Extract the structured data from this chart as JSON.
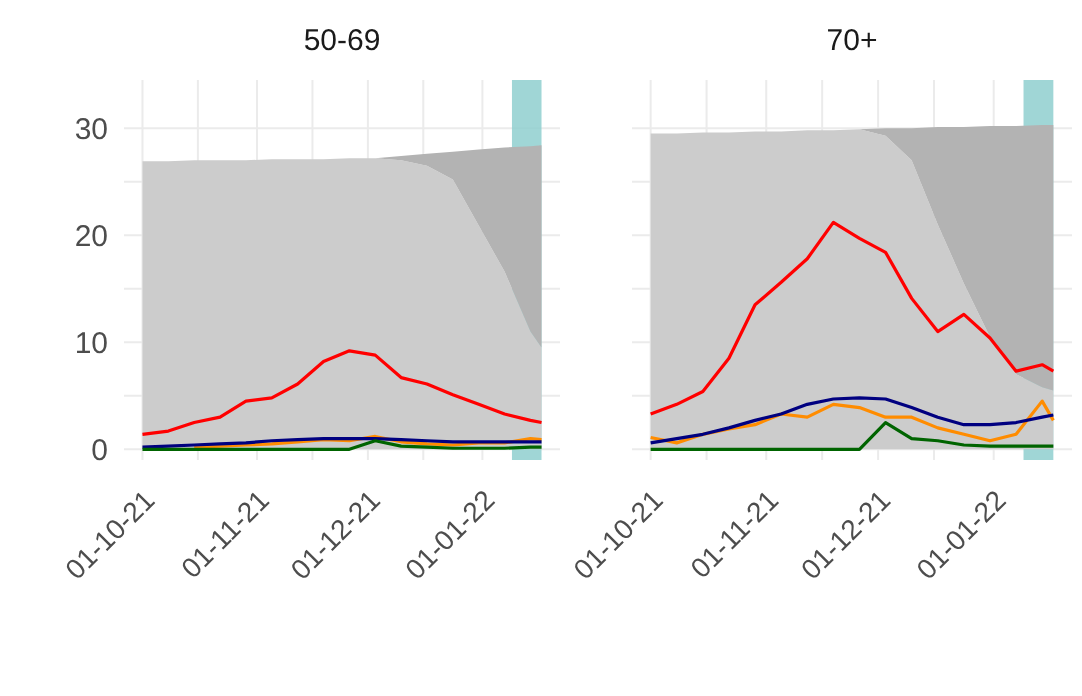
{
  "chart_data": [
    {
      "type": "line",
      "title": "50-69",
      "stacked": true,
      "grid": true,
      "legend": false,
      "x": [
        "2021-10-01",
        "2021-10-08",
        "2021-10-15",
        "2021-10-22",
        "2021-10-29",
        "2021-11-05",
        "2021-11-12",
        "2021-11-19",
        "2021-11-26",
        "2021-12-03",
        "2021-12-10",
        "2021-12-17",
        "2021-12-24",
        "2021-12-31",
        "2022-01-07",
        "2022-01-14",
        "2022-01-17"
      ],
      "series": [
        {
          "type": "area",
          "color": "#cccccc",
          "values": [
            26.9,
            26.9,
            27.0,
            27.0,
            27.0,
            27.1,
            27.1,
            27.1,
            27.2,
            27.2,
            27.0,
            26.5,
            25.2,
            20.9,
            16.6,
            11.0,
            9.5
          ]
        },
        {
          "type": "area",
          "color": "#b3b3b3",
          "values": [
            0,
            0,
            0,
            0,
            0,
            0,
            0,
            0,
            0,
            0,
            0.4,
            1.1,
            2.6,
            7.1,
            11.6,
            17.3,
            18.9
          ]
        },
        {
          "color": "#ff0000",
          "values": [
            1.4,
            1.7,
            2.5,
            3.0,
            4.5,
            4.8,
            6.1,
            8.2,
            9.2,
            8.8,
            6.7,
            6.1,
            5.1,
            4.2,
            3.3,
            2.7,
            2.5
          ]
        },
        {
          "color": "#ff8c00",
          "values": [
            null,
            null,
            0.2,
            0.3,
            0.4,
            0.5,
            0.7,
            0.9,
            0.8,
            1.2,
            0.7,
            0.5,
            0.4,
            0.6,
            0.6,
            1.0,
            0.9
          ]
        },
        {
          "color": "#000080",
          "values": [
            0.2,
            0.3,
            0.4,
            0.5,
            0.6,
            0.8,
            0.9,
            1.0,
            1.0,
            1.0,
            0.9,
            0.8,
            0.7,
            0.7,
            0.7,
            0.7,
            0.7
          ]
        },
        {
          "color": "#006400",
          "values": [
            0,
            0,
            0,
            0,
            0,
            0,
            0,
            0,
            0,
            0.8,
            0.3,
            0.2,
            0.1,
            0.1,
            0.1,
            0.2,
            0.2
          ]
        }
      ],
      "xlim": [
        "2021-09-26",
        "2022-01-22"
      ],
      "xticks": [
        {
          "value": "2021-10-01",
          "label": "01-10-21"
        },
        {
          "value": "2021-10-16",
          "label": null
        },
        {
          "value": "2021-11-01",
          "label": "01-11-21"
        },
        {
          "value": "2021-11-16",
          "label": null
        },
        {
          "value": "2021-12-01",
          "label": "01-12-21"
        },
        {
          "value": "2021-12-16",
          "label": null
        },
        {
          "value": "2022-01-01",
          "label": "01-01-22"
        }
      ],
      "ylim": [
        -1,
        34.5
      ],
      "yticks": [
        0,
        {
          "value": 5,
          "label": null
        },
        10,
        {
          "value": 15,
          "label": null
        },
        20,
        {
          "value": 25,
          "label": null
        },
        30
      ],
      "bands": [
        {
          "axis": "x",
          "from": "2022-01-09",
          "to": "2022-01-17",
          "color": "#8fcfcf"
        }
      ]
    },
    {
      "type": "line",
      "title": "70+",
      "stacked": true,
      "grid": true,
      "legend": false,
      "tick_labels": "x",
      "x": [
        "2021-10-01",
        "2021-10-08",
        "2021-10-15",
        "2021-10-22",
        "2021-10-29",
        "2021-11-05",
        "2021-11-12",
        "2021-11-19",
        "2021-11-26",
        "2021-12-03",
        "2021-12-10",
        "2021-12-17",
        "2021-12-24",
        "2021-12-31",
        "2022-01-07",
        "2022-01-14",
        "2022-01-17"
      ],
      "series": [
        {
          "type": "area",
          "color": "#cccccc",
          "values": [
            29.5,
            29.5,
            29.6,
            29.6,
            29.7,
            29.7,
            29.8,
            29.8,
            29.9,
            29.3,
            27.0,
            21.0,
            15.5,
            10.5,
            7.0,
            5.8,
            5.5
          ]
        },
        {
          "type": "area",
          "color": "#b3b3b3",
          "values": [
            0,
            0,
            0,
            0,
            0,
            0,
            0,
            0,
            0,
            0.7,
            3.0,
            9.1,
            14.6,
            19.7,
            23.2,
            24.5,
            24.8
          ]
        },
        {
          "color": "#ff0000",
          "values": [
            3.3,
            4.2,
            5.4,
            8.5,
            13.5,
            15.6,
            17.8,
            21.2,
            19.7,
            18.4,
            14.1,
            11.0,
            12.6,
            10.4,
            7.3,
            7.9,
            7.3
          ]
        },
        {
          "color": "#ff8c00",
          "values": [
            1.1,
            0.6,
            1.4,
            1.9,
            2.3,
            3.3,
            3.0,
            4.2,
            3.9,
            3.0,
            3.0,
            2.0,
            1.4,
            0.8,
            1.4,
            4.5,
            2.7
          ]
        },
        {
          "color": "#000080",
          "values": [
            0.6,
            1.0,
            1.4,
            2.0,
            2.7,
            3.3,
            4.2,
            4.7,
            4.8,
            4.7,
            3.9,
            3.0,
            2.3,
            2.3,
            2.5,
            3.0,
            3.2
          ]
        },
        {
          "color": "#006400",
          "values": [
            0,
            0,
            0,
            0,
            0,
            0,
            0,
            0,
            0,
            2.5,
            1.0,
            0.8,
            0.4,
            0.3,
            0.3,
            0.3,
            0.3
          ]
        }
      ],
      "xlim": [
        "2021-09-26",
        "2022-01-22"
      ],
      "xticks": [
        {
          "value": "2021-10-01",
          "label": "01-10-21"
        },
        {
          "value": "2021-10-16",
          "label": null
        },
        {
          "value": "2021-11-01",
          "label": "01-11-21"
        },
        {
          "value": "2021-11-16",
          "label": null
        },
        {
          "value": "2021-12-01",
          "label": "01-12-21"
        },
        {
          "value": "2021-12-16",
          "label": null
        },
        {
          "value": "2022-01-01",
          "label": "01-01-22"
        }
      ],
      "ylim": [
        -1,
        34.5
      ],
      "yticks": [
        0,
        {
          "value": 5,
          "label": null
        },
        10,
        {
          "value": 15,
          "label": null
        },
        20,
        {
          "value": 25,
          "label": null
        },
        30
      ],
      "bands": [
        {
          "axis": "x",
          "from": "2022-01-09",
          "to": "2022-01-17",
          "color": "#8fcfcf"
        }
      ]
    }
  ]
}
